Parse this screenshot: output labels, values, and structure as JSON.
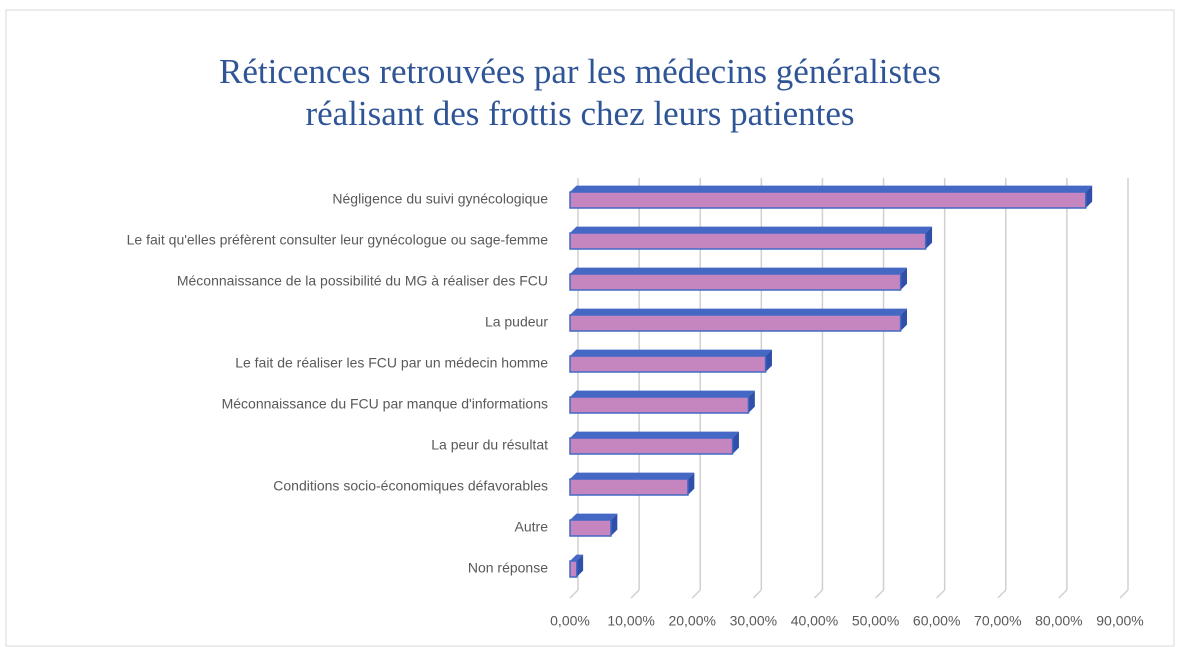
{
  "chart_data": {
    "type": "bar",
    "orientation": "horizontal",
    "title": [
      "Réticences retrouvées par les médecins généralistes",
      "réalisant des frottis chez leurs patientes"
    ],
    "categories": [
      "Négligence du suivi gynécologique",
      "Le fait qu'elles préfèrent consulter leur gynécologue ou sage-femme",
      "Méconnaissance de la possibilité du MG à réaliser des FCU",
      "La pudeur",
      "Le fait de réaliser les FCU par un médecin homme",
      "Méconnaissance du FCU par manque d'informations",
      "La peur du résultat",
      "Conditions socio-économiques défavorables",
      "Autre",
      "Non réponse"
    ],
    "values": [
      84.4,
      58.2,
      54.1,
      54.1,
      32,
      29.2,
      26.6,
      19.3,
      6.7,
      1.1
    ],
    "color": "#c586c0",
    "edge_color": "#4468c4",
    "xlim": [
      0,
      90
    ],
    "xticks": [
      {
        "value": 0,
        "label": "0,00%"
      },
      {
        "value": 10,
        "label": "10,00%"
      },
      {
        "value": 20,
        "label": "20,00%"
      },
      {
        "value": 30,
        "label": "30,00%"
      },
      {
        "value": 40,
        "label": "40,00%"
      },
      {
        "value": 50,
        "label": "50,00%"
      },
      {
        "value": 60,
        "label": "60,00%"
      },
      {
        "value": 70,
        "label": "70,00%"
      },
      {
        "value": 80,
        "label": "80,00%"
      },
      {
        "value": 90,
        "label": "90,00%"
      }
    ],
    "grid": true
  }
}
